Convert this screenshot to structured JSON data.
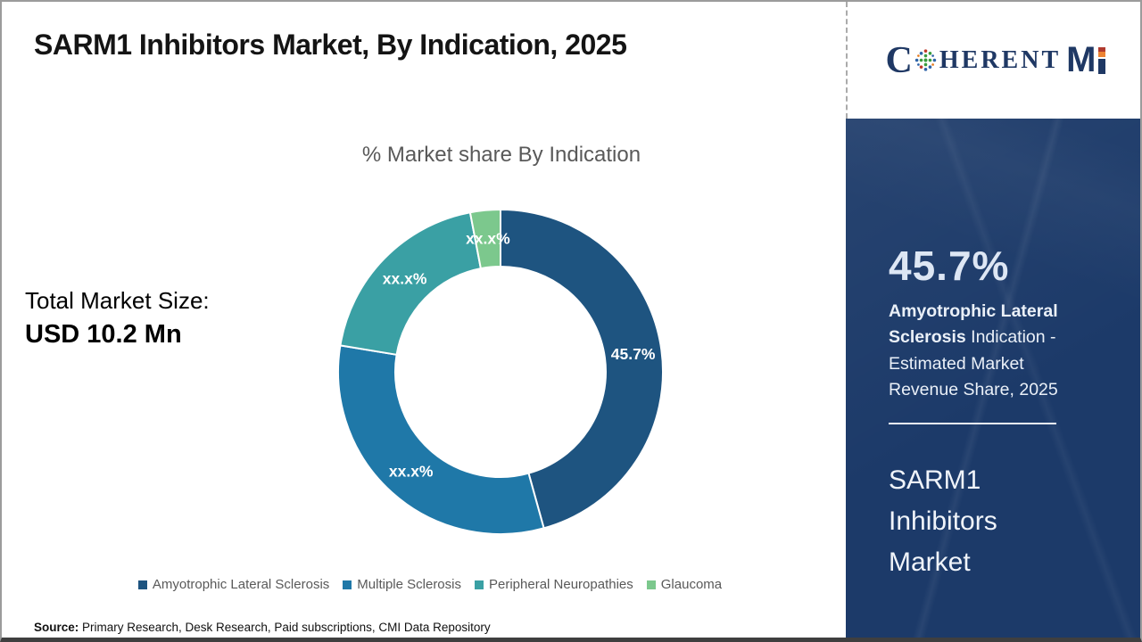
{
  "header": {
    "title": "SARM1 Inhibitors Market, By Indication, 2025"
  },
  "logo": {
    "brand": "CoherentMI",
    "part_c": "C",
    "part_rest": "HERENT",
    "part_m": "M"
  },
  "chart": {
    "subtitle": "% Market share By Indication",
    "total_label": "Total Market Size:",
    "total_value": "USD 10.2 Mn"
  },
  "chart_data": {
    "type": "pie",
    "subtype": "donut",
    "title": "% Market share By Indication",
    "categories": [
      "Amyotrophic Lateral Sclerosis",
      "Multiple Sclerosis",
      "Peripheral Neuropathies",
      "Glaucoma"
    ],
    "values": [
      45.7,
      31.9,
      19.4,
      3.0
    ],
    "display_labels": [
      "45.7%",
      "xx.x%",
      "xx.x%",
      "xx.x%"
    ],
    "colors": [
      "#1e5480",
      "#1f78a8",
      "#3aa0a4",
      "#7cc88d"
    ],
    "donut_hole_ratio": 0.65,
    "start_angle_deg": 0,
    "direction": "clockwise",
    "legend_position": "bottom",
    "notes": "Only the Amyotrophic Lateral Sclerosis share (45.7%) is disclosed; other slice labels are masked as xx.x%. Slice sizes for masked segments are estimated from arc angles."
  },
  "sidebar": {
    "bg_color": "#1c3a69",
    "highlight_value": "45.7%",
    "highlight_bold": "Amyotrophic Lateral Sclerosis",
    "highlight_regular": " Indication - Estimated Market Revenue Share, 2025",
    "market_name": "SARM1 Inhibitors Market"
  },
  "source": {
    "label": "Source:",
    "text": " Primary Research, Desk Research, Paid subscriptions, CMI Data Repository"
  }
}
